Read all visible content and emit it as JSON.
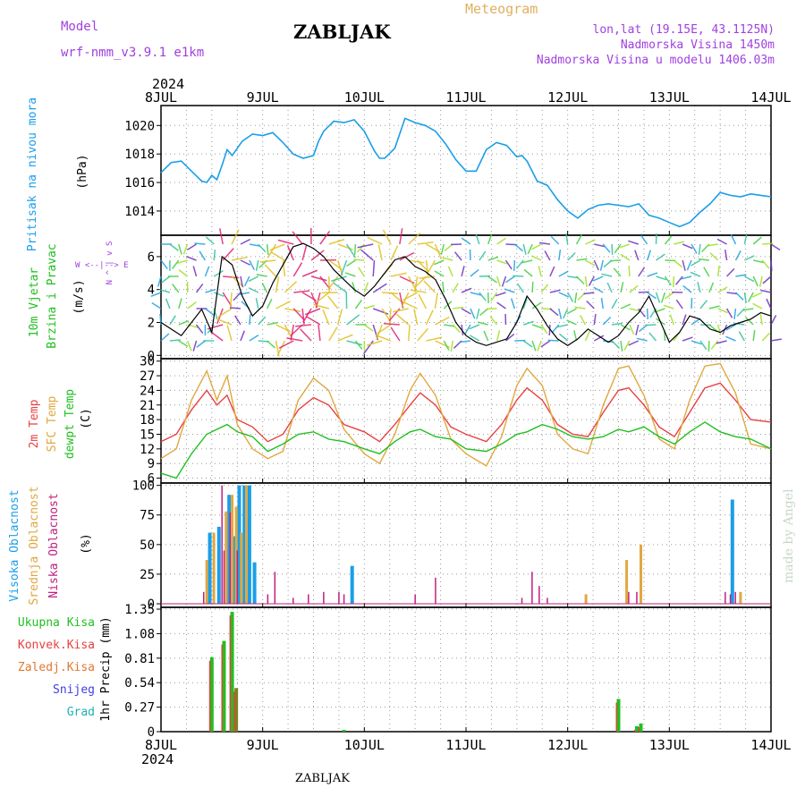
{
  "header": {
    "model_label": "Model",
    "model_value": "wrf-nmm_v3.9.1 e1km",
    "title": "ZABLJAK",
    "meteogram": "Meteogram",
    "coords": "lon,lat (19.15E, 43.1125N)",
    "elevation": "Nadmorska Visina 1450m",
    "model_elevation": "Nadmorska Visina u modelu 1406.03m",
    "year_top": "2024",
    "year_bottom": "2024",
    "footer": "ZABLJAK",
    "watermark": "made by Angel"
  },
  "colors": {
    "pressure": "#1a9ee8",
    "t2m": "#e84040",
    "sfc": "#e0a840",
    "dewpt": "#20c020",
    "high": "#1a9ee8",
    "mid": "#e0a840",
    "low": "#c02080",
    "grid": "#999999",
    "ylabel_pressure": "#1a9ee8",
    "ylabel_wind": "#20c020",
    "ylabel_purple": "#a040e0"
  },
  "time_axis": {
    "labels": [
      "8JUL",
      "9JUL",
      "10JUL",
      "11JUL",
      "12JUL",
      "13JUL",
      "14JUL"
    ]
  },
  "chart_data": [
    {
      "type": "line",
      "id": "pressure",
      "ylabel": "Pritisak na nivou mora",
      "unit": "(hPa)",
      "yticks": [
        "1014",
        "1016",
        "1018",
        "1020"
      ],
      "ylim": [
        1012.3,
        1021.4
      ],
      "x": [
        0,
        0.1,
        0.2,
        0.3,
        0.4,
        0.45,
        0.5,
        0.55,
        0.6,
        0.65,
        0.7,
        0.8,
        0.9,
        1.0,
        1.1,
        1.2,
        1.3,
        1.4,
        1.5,
        1.55,
        1.6,
        1.7,
        1.8,
        1.9,
        2.0,
        2.1,
        2.15,
        2.2,
        2.3,
        2.4,
        2.5,
        2.6,
        2.7,
        2.8,
        2.9,
        3.0,
        3.1,
        3.2,
        3.3,
        3.4,
        3.5,
        3.55,
        3.6,
        3.7,
        3.8,
        3.9,
        4.0,
        4.1,
        4.2,
        4.3,
        4.4,
        4.5,
        4.6,
        4.7,
        4.8,
        4.9,
        5.0,
        5.1,
        5.2,
        5.3,
        5.4,
        5.5,
        5.6,
        5.7,
        5.8,
        5.9,
        6.0
      ],
      "y": [
        1016.7,
        1017.4,
        1017.5,
        1016.8,
        1016.1,
        1016.0,
        1016.5,
        1016.2,
        1017.2,
        1018.3,
        1017.9,
        1018.9,
        1019.4,
        1019.3,
        1019.5,
        1018.8,
        1018.0,
        1017.7,
        1017.9,
        1018.9,
        1019.6,
        1020.3,
        1020.2,
        1020.4,
        1019.6,
        1018.2,
        1017.7,
        1017.7,
        1018.4,
        1020.5,
        1020.2,
        1020.0,
        1019.6,
        1018.7,
        1017.6,
        1016.8,
        1016.8,
        1018.3,
        1018.8,
        1018.6,
        1017.8,
        1017.9,
        1017.5,
        1016.1,
        1015.8,
        1014.8,
        1014.0,
        1013.5,
        1014.1,
        1014.4,
        1014.5,
        1014.4,
        1014.3,
        1014.5,
        1013.7,
        1013.5,
        1013.2,
        1012.9,
        1013.2,
        1013.9,
        1014.5,
        1015.3,
        1015.1,
        1015.0,
        1015.2,
        1015.1,
        1015.0
      ]
    },
    {
      "type": "line",
      "id": "wind",
      "ylabel": "10m Vjetar Brzina i Pravac",
      "unit": "(m/s)",
      "compass": "W <--|--> E",
      "compass_ns": "N ^ | v S",
      "yticks": [
        "0",
        "2",
        "4",
        "6"
      ],
      "ylim": [
        -0.2,
        7.3
      ],
      "x": [
        0,
        0.1,
        0.2,
        0.3,
        0.4,
        0.5,
        0.6,
        0.7,
        0.8,
        0.9,
        1.0,
        1.1,
        1.2,
        1.3,
        1.4,
        1.5,
        1.6,
        1.7,
        1.8,
        1.9,
        2.0,
        2.1,
        2.2,
        2.3,
        2.4,
        2.5,
        2.6,
        2.7,
        2.8,
        2.9,
        3.0,
        3.1,
        3.2,
        3.3,
        3.4,
        3.5,
        3.6,
        3.7,
        3.8,
        3.9,
        4.0,
        4.1,
        4.2,
        4.3,
        4.4,
        4.5,
        4.6,
        4.7,
        4.8,
        4.9,
        5.0,
        5.1,
        5.2,
        5.3,
        5.4,
        5.5,
        5.6,
        5.7,
        5.8,
        5.9,
        6.0
      ],
      "y": [
        2.0,
        1.6,
        1.2,
        2.0,
        2.8,
        1.4,
        6.0,
        5.5,
        3.6,
        2.4,
        3.0,
        4.4,
        5.5,
        6.6,
        6.8,
        6.5,
        6.0,
        5.2,
        4.6,
        4.0,
        3.6,
        4.2,
        5.0,
        5.8,
        6.0,
        5.4,
        5.1,
        4.6,
        3.4,
        2.0,
        1.2,
        0.8,
        0.6,
        0.8,
        1.0,
        2.0,
        3.6,
        2.8,
        1.8,
        1.0,
        0.6,
        1.0,
        1.6,
        1.2,
        0.8,
        1.2,
        2.0,
        2.6,
        3.6,
        2.2,
        0.8,
        1.4,
        2.4,
        2.2,
        1.6,
        1.4,
        1.8,
        2.0,
        2.2,
        2.6,
        2.4
      ]
    },
    {
      "type": "line",
      "id": "temperature",
      "ylabel": [
        "2m Temp",
        "SFC Temp",
        "dewpt Temp"
      ],
      "unit": "(C)",
      "yticks": [
        "6",
        "9",
        "12",
        "15",
        "18",
        "21",
        "24",
        "27",
        "30"
      ],
      "ylim": [
        5,
        30.5
      ],
      "x": [
        0,
        0.15,
        0.3,
        0.45,
        0.55,
        0.65,
        0.75,
        0.9,
        1.05,
        1.2,
        1.35,
        1.5,
        1.65,
        1.8,
        2.0,
        2.15,
        2.3,
        2.45,
        2.55,
        2.7,
        2.85,
        3.0,
        3.2,
        3.35,
        3.5,
        3.6,
        3.75,
        3.9,
        4.05,
        4.2,
        4.35,
        4.5,
        4.6,
        4.75,
        4.9,
        5.05,
        5.2,
        5.35,
        5.5,
        5.65,
        5.8,
        6.0
      ],
      "series": [
        {
          "name": "2m Temp",
          "values": [
            13.5,
            15.0,
            20.0,
            24.0,
            21.0,
            23.0,
            18.0,
            16.5,
            13.5,
            15.0,
            20.0,
            22.5,
            21.0,
            17.0,
            15.5,
            13.5,
            17.0,
            21.0,
            23.5,
            21.0,
            16.5,
            15.0,
            13.5,
            17.0,
            22.0,
            24.5,
            22.0,
            17.0,
            15.0,
            14.5,
            19.5,
            24.0,
            24.5,
            21.0,
            16.5,
            14.5,
            19.5,
            24.5,
            25.5,
            22.0,
            18.0,
            17.5
          ]
        },
        {
          "name": "SFC Temp",
          "values": [
            10.0,
            12.0,
            22.0,
            28.0,
            22.0,
            27.0,
            17.0,
            12.0,
            10.0,
            11.5,
            22.0,
            26.5,
            24.0,
            16.0,
            11.0,
            9.0,
            15.0,
            24.0,
            27.5,
            23.0,
            14.0,
            11.0,
            8.5,
            14.5,
            25.0,
            28.5,
            25.0,
            15.0,
            12.0,
            11.0,
            21.0,
            28.5,
            29.0,
            23.0,
            14.0,
            12.0,
            22.0,
            29.0,
            29.5,
            23.5,
            13.0,
            12.0
          ]
        },
        {
          "name": "dewpt Temp",
          "values": [
            7.0,
            6.0,
            11.0,
            15.0,
            16.0,
            17.0,
            15.5,
            14.5,
            11.5,
            13.0,
            15.0,
            15.5,
            14.0,
            13.5,
            12.0,
            11.0,
            13.5,
            15.5,
            16.0,
            14.5,
            14.0,
            12.0,
            11.5,
            13.0,
            15.0,
            15.5,
            17.0,
            16.0,
            14.5,
            14.0,
            14.5,
            16.0,
            15.5,
            16.5,
            14.5,
            13.0,
            15.5,
            17.5,
            15.5,
            14.5,
            14.0,
            12.0
          ]
        }
      ]
    },
    {
      "type": "bar",
      "id": "cloud",
      "ylabel": [
        "Visoka Oblacnost",
        "Srednja Oblacnost",
        "Niska Oblacnost"
      ],
      "unit": "(%)",
      "yticks": [
        "0",
        "25",
        "50",
        "75",
        "100"
      ],
      "ylim": [
        -3,
        102
      ],
      "series": [
        {
          "name": "Visoka Oblacnost",
          "x": [
            0.48,
            0.57,
            0.67,
            0.72,
            0.77,
            0.82,
            0.87,
            0.92,
            1.88,
            5.62
          ],
          "values": [
            60,
            65,
            92,
            57,
            100,
            100,
            100,
            35,
            32,
            88
          ]
        },
        {
          "name": "Srednja Oblacnost",
          "x": [
            0.45,
            0.52,
            0.64,
            0.7,
            0.74,
            0.79,
            0.84,
            4.18,
            4.58,
            4.72,
            5.7
          ],
          "values": [
            37,
            60,
            78,
            92,
            82,
            60,
            100,
            8,
            37,
            50,
            10
          ]
        },
        {
          "name": "Niska Oblacnost",
          "x": [
            0.42,
            0.6,
            0.62,
            0.68,
            0.75,
            1.05,
            1.12,
            1.3,
            1.45,
            1.6,
            1.75,
            1.8,
            2.5,
            2.7,
            3.55,
            3.65,
            3.72,
            3.8,
            4.6,
            4.68,
            5.55,
            5.6,
            5.65
          ],
          "values": [
            10,
            100,
            45,
            77,
            45,
            8,
            27,
            5,
            8,
            10,
            10,
            8,
            8,
            22,
            5,
            27,
            15,
            5,
            10,
            10,
            10,
            8,
            10
          ]
        }
      ]
    },
    {
      "type": "bar",
      "id": "precip",
      "ylabel": "1hr Precip",
      "unit": "(mm)",
      "legend": [
        "Ukupna Kisa",
        "Konvek.Kisa",
        "Zaledj.Kisa",
        "Snijeg",
        "Grad"
      ],
      "legend_colors": [
        "#20c020",
        "#e84040",
        "#e07830",
        "#4040e0",
        "#20b0b0"
      ],
      "yticks": [
        "0",
        "0.27",
        "0.54",
        "0.81",
        "1.08",
        "1.35"
      ],
      "ylim": [
        0,
        1.37
      ],
      "x": [
        0.5,
        0.62,
        0.7,
        0.74,
        1.8,
        4.5,
        4.68,
        4.72
      ],
      "values": [
        0.82,
        1.0,
        1.32,
        0.48,
        0.02,
        0.36,
        0.06,
        0.09
      ]
    }
  ]
}
